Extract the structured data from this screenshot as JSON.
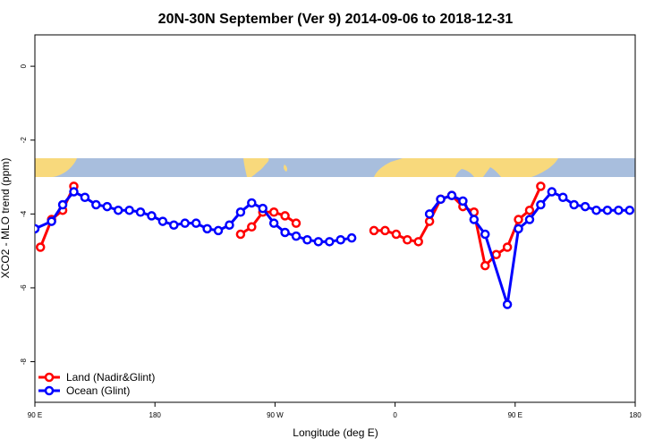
{
  "chart_data": {
    "type": "line",
    "title": "20N-30N September (Ver 9)   2014-09-06 to 2018-12-31",
    "xlabel": "Longitude (deg E)",
    "ylabel": "XCO2 - MLO trend (ppm)",
    "xlim": [
      -90,
      180
    ],
    "ylim": [
      -9.1,
      0.85
    ],
    "x_ticks": [
      {
        "value": -90,
        "label": "90 E"
      },
      {
        "value": -36,
        "label": "180"
      },
      {
        "value": 18,
        "label": "90 W"
      },
      {
        "value": 72,
        "label": "0"
      },
      {
        "value": 126,
        "label": "90 E"
      },
      {
        "value": 180,
        "label": "180"
      }
    ],
    "y_ticks": [
      {
        "value": 0,
        "label": "0"
      },
      {
        "value": -2,
        "label": "-2"
      },
      {
        "value": -4,
        "label": "-4"
      },
      {
        "value": -6,
        "label": "-6"
      },
      {
        "value": -8,
        "label": "-8"
      }
    ],
    "grid": false,
    "legend_position": "bottom-left",
    "map_strip": {
      "y_range": [
        -2.5,
        -3.0
      ],
      "ocean_color": "#a8bedd",
      "land_color": "#f8d97c"
    },
    "series": [
      {
        "name": "Land (Nadir&Glint)",
        "color": "#ff0000",
        "segments": [
          [
            [
              -87.5,
              -4.9
            ],
            [
              -82.5,
              -4.15
            ],
            [
              -77.5,
              -3.9
            ],
            [
              -72.5,
              -3.25
            ]
          ],
          [
            [
              2.5,
              -4.55
            ],
            [
              7.5,
              -4.35
            ],
            [
              12.5,
              -3.95
            ],
            [
              17.5,
              -3.95
            ],
            [
              22.5,
              -4.05
            ],
            [
              27.5,
              -4.25
            ]
          ],
          [
            [
              62.5,
              -4.45
            ],
            [
              67.5,
              -4.45
            ],
            [
              72.5,
              -4.55
            ],
            [
              77.5,
              -4.7
            ],
            [
              82.5,
              -4.75
            ],
            [
              87.5,
              -4.2
            ],
            [
              92.5,
              -3.6
            ],
            [
              97.5,
              -3.5
            ],
            [
              102.5,
              -3.8
            ],
            [
              107.5,
              -3.95
            ],
            [
              112.5,
              -5.4
            ],
            [
              117.5,
              -5.1
            ],
            [
              122.5,
              -4.9
            ],
            [
              127.5,
              -4.15
            ],
            [
              132.5,
              -3.9
            ],
            [
              137.5,
              -3.25
            ]
          ]
        ]
      },
      {
        "name": "Ocean (Glint)",
        "color": "#0000ff",
        "segments": [
          [
            [
              -90.0,
              -4.4
            ],
            [
              -82.5,
              -4.2
            ],
            [
              -77.5,
              -3.75
            ],
            [
              -72.5,
              -3.4
            ],
            [
              -67.5,
              -3.55
            ],
            [
              -62.5,
              -3.75
            ],
            [
              -57.5,
              -3.8
            ],
            [
              -52.5,
              -3.9
            ],
            [
              -47.5,
              -3.9
            ],
            [
              -42.5,
              -3.95
            ],
            [
              -37.5,
              -4.05
            ],
            [
              -32.5,
              -4.2
            ],
            [
              -27.5,
              -4.3
            ],
            [
              -22.5,
              -4.25
            ],
            [
              -17.5,
              -4.25
            ],
            [
              -12.5,
              -4.4
            ],
            [
              -7.5,
              -4.45
            ],
            [
              -2.5,
              -4.3
            ],
            [
              2.5,
              -3.95
            ],
            [
              7.5,
              -3.7
            ],
            [
              12.5,
              -3.85
            ],
            [
              17.5,
              -4.25
            ],
            [
              22.5,
              -4.5
            ],
            [
              27.5,
              -4.6
            ],
            [
              32.5,
              -4.7
            ],
            [
              37.5,
              -4.75
            ],
            [
              42.5,
              -4.75
            ],
            [
              47.5,
              -4.7
            ],
            [
              52.5,
              -4.65
            ]
          ],
          [
            [
              87.5,
              -4.0
            ],
            [
              92.5,
              -3.6
            ],
            [
              97.5,
              -3.5
            ],
            [
              102.5,
              -3.65
            ],
            [
              107.5,
              -4.15
            ],
            [
              112.5,
              -4.55
            ],
            [
              122.5,
              -6.45
            ],
            [
              127.5,
              -4.4
            ],
            [
              132.5,
              -4.15
            ],
            [
              137.5,
              -3.75
            ],
            [
              142.5,
              -3.4
            ],
            [
              147.5,
              -3.55
            ],
            [
              152.5,
              -3.75
            ],
            [
              157.5,
              -3.8
            ],
            [
              162.5,
              -3.9
            ],
            [
              167.5,
              -3.9
            ],
            [
              172.5,
              -3.9
            ],
            [
              177.5,
              -3.9
            ]
          ]
        ]
      }
    ]
  }
}
